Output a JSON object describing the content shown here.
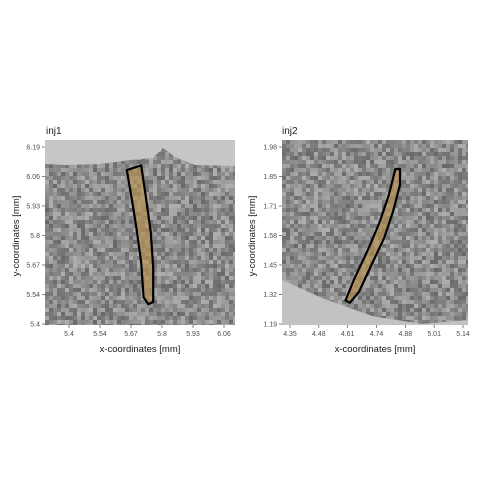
{
  "panels": [
    {
      "id": "inj1",
      "title": "inj1",
      "xlabel": "x-coordinates [mm]",
      "ylabel": "y-coordinates [mm]",
      "x_ticks": [
        "5.4",
        "5.54",
        "5.67",
        "5.8",
        "5.93",
        "6.06"
      ],
      "y_ticks": [
        "6.19",
        "6.06",
        "5.93",
        "5.8",
        "5.67",
        "5.54",
        "5.4"
      ],
      "xlim": [
        5.31,
        6.1
      ],
      "ylim": [
        5.4,
        6.2
      ],
      "outline_color": "#000000",
      "fill_color": "#b8914f",
      "outline": [
        [
          5.65,
          6.07
        ],
        [
          5.71,
          6.09
        ],
        [
          5.73,
          5.95
        ],
        [
          5.75,
          5.8
        ],
        [
          5.76,
          5.65
        ],
        [
          5.76,
          5.5
        ],
        [
          5.74,
          5.49
        ],
        [
          5.72,
          5.52
        ],
        [
          5.71,
          5.67
        ],
        [
          5.69,
          5.82
        ],
        [
          5.67,
          5.95
        ]
      ]
    },
    {
      "id": "inj2",
      "title": "inj2",
      "xlabel": "x-coordinates [mm]",
      "ylabel": "y-coordinates [mm]",
      "x_ticks": [
        "4.35",
        "4.48",
        "4.61",
        "4.74",
        "4.88",
        "5.01",
        "5.14"
      ],
      "y_ticks": [
        "1.98",
        "1.85",
        "1.71",
        "1.58",
        "1.45",
        "1.32",
        "1.19"
      ],
      "xlim": [
        4.33,
        5.15
      ],
      "ylim": [
        1.16,
        1.99
      ],
      "outline_color": "#000000",
      "fill_color": "#b8914f",
      "outline": [
        [
          4.83,
          1.86
        ],
        [
          4.85,
          1.86
        ],
        [
          4.85,
          1.79
        ],
        [
          4.82,
          1.67
        ],
        [
          4.78,
          1.55
        ],
        [
          4.72,
          1.42
        ],
        [
          4.67,
          1.31
        ],
        [
          4.63,
          1.26
        ],
        [
          4.61,
          1.27
        ],
        [
          4.65,
          1.37
        ],
        [
          4.71,
          1.5
        ],
        [
          4.76,
          1.62
        ],
        [
          4.8,
          1.74
        ]
      ]
    }
  ]
}
